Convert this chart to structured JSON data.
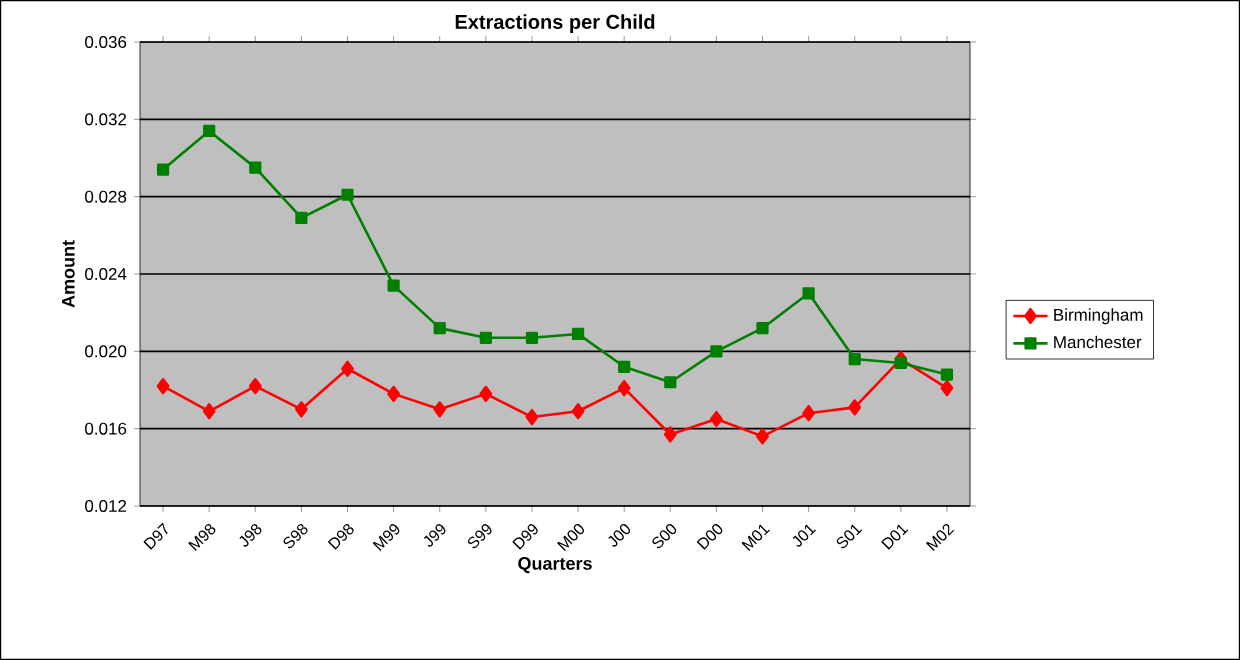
{
  "chart_data": {
    "type": "line",
    "title": "Extractions per Child",
    "xlabel": "Quarters",
    "ylabel": "Amount",
    "categories": [
      "D97",
      "M98",
      "J98",
      "S98",
      "D98",
      "M99",
      "J99",
      "S99",
      "D99",
      "M00",
      "J00",
      "S00",
      "D00",
      "M01",
      "J01",
      "S01",
      "D01",
      "M02"
    ],
    "series": [
      {
        "name": "Birmingham",
        "color": "#ff0000",
        "marker": "diamond",
        "values": [
          0.0182,
          0.0169,
          0.0182,
          0.017,
          0.0191,
          0.0178,
          0.017,
          0.0178,
          0.0166,
          0.0169,
          0.0181,
          0.0157,
          0.0165,
          0.0156,
          0.0168,
          0.0171,
          0.0196,
          0.0181
        ]
      },
      {
        "name": "Manchester",
        "color": "#008000",
        "marker": "square",
        "values": [
          0.0294,
          0.0314,
          0.0295,
          0.0269,
          0.0281,
          0.0234,
          0.0212,
          0.0207,
          0.0207,
          0.0209,
          0.0192,
          0.0184,
          0.02,
          0.0212,
          0.023,
          0.0196,
          0.0194,
          0.0188
        ]
      }
    ],
    "ylim": [
      0.012,
      0.036
    ],
    "yticks": [
      0.012,
      0.016,
      {
        "value": 0.02,
        "label": "0.020"
      },
      0.024,
      0.028,
      0.032,
      0.036
    ],
    "grid": "y",
    "legend": "right"
  }
}
